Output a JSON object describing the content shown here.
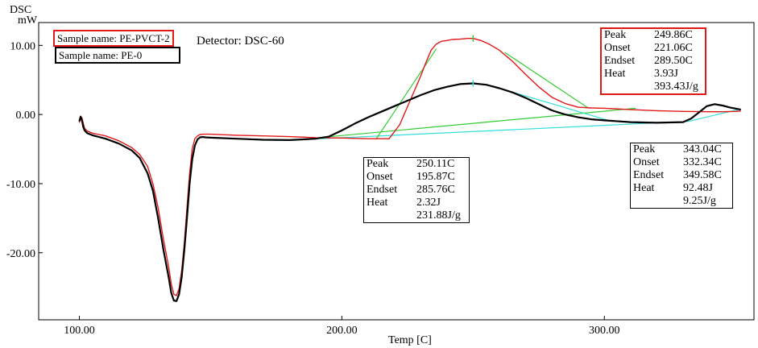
{
  "detector": "Detector: DSC-60",
  "samples": [
    {
      "name": "Sample name: PE-PVCT-2",
      "color": "#e01818"
    },
    {
      "name": "Sample name: PE-0",
      "color": "#000000"
    }
  ],
  "boxes": [
    {
      "id": "red",
      "border": "#e01818",
      "rows": [
        [
          "Peak",
          "249.86C"
        ],
        [
          "Onset",
          "221.06C"
        ],
        [
          "Endset",
          "289.50C"
        ],
        [
          "Heat",
          "3.93J"
        ],
        [
          "",
          "393.43J/g"
        ]
      ]
    },
    {
      "id": "mid",
      "border": "#000000",
      "rows": [
        [
          "Peak",
          "250.11C"
        ],
        [
          "Onset",
          "195.87C"
        ],
        [
          "Endset",
          "285.76C"
        ],
        [
          "Heat",
          "2.32J"
        ],
        [
          "",
          "231.88J/g"
        ]
      ]
    },
    {
      "id": "right",
      "border": "#000000",
      "rows": [
        [
          "Peak",
          "343.04C"
        ],
        [
          "Onset",
          "332.34C"
        ],
        [
          "Endset",
          "349.58C"
        ],
        [
          "Heat",
          "92.48J"
        ],
        [
          "",
          "9.25J/g"
        ]
      ]
    }
  ],
  "chart_data": {
    "type": "line",
    "title": "",
    "ylabel_top": "DSC",
    "ylabel_unit": "mW",
    "xlabel": "Temp [C]",
    "xlim": [
      84.5,
      357
    ],
    "ylim": [
      -29.7,
      13.3
    ],
    "xticks": [
      100,
      200,
      300
    ],
    "xtick_labels": [
      "100.00",
      "200.00",
      "300.00"
    ],
    "yticks": [
      10,
      0,
      -10,
      -20
    ],
    "ytick_labels": [
      "10.00",
      "0.00",
      "-10.00",
      "-20.00"
    ],
    "series": [
      {
        "name": "PE-PVCT-2",
        "color": "#e01818",
        "x": [
          100,
          100.5,
          101,
          101.5,
          102,
          103,
          105,
          110,
          115,
          120,
          123,
          126,
          128,
          130,
          132,
          134,
          135,
          136,
          137,
          138,
          139,
          140,
          141,
          142,
          143,
          144,
          145,
          146,
          147,
          148,
          150,
          160,
          170,
          180,
          190,
          200,
          210,
          218,
          222,
          226,
          230,
          232,
          234,
          236,
          238,
          240,
          242,
          245,
          248,
          250,
          253,
          256,
          260,
          265,
          270,
          275,
          280,
          285,
          290,
          295,
          300,
          310,
          320,
          330,
          340,
          345,
          350,
          352
        ],
        "y": [
          -1.2,
          -0.4,
          -0.5,
          -1.3,
          -2.0,
          -2.4,
          -2.7,
          -3.1,
          -3.8,
          -4.8,
          -5.8,
          -7.5,
          -10,
          -13.5,
          -18,
          -22,
          -24.5,
          -26.0,
          -26.2,
          -25.2,
          -22.5,
          -18.5,
          -13.5,
          -8.5,
          -5.0,
          -3.5,
          -3.1,
          -2.9,
          -2.85,
          -2.85,
          -2.85,
          -3.0,
          -3.1,
          -3.2,
          -3.35,
          -3.4,
          -3.5,
          -3.5,
          -1.5,
          2,
          5.5,
          7.5,
          9.3,
          10.2,
          10.6,
          10.7,
          10.85,
          10.9,
          11.0,
          11.0,
          10.7,
          10.2,
          9.3,
          7.7,
          5.8,
          4.0,
          2.5,
          1.6,
          1.05,
          0.95,
          0.9,
          0.7,
          0.55,
          0.45,
          0.4,
          0.4,
          0.45,
          0.5
        ]
      },
      {
        "name": "PE-0",
        "color": "#000000",
        "x": [
          100,
          100.5,
          101,
          101.5,
          102,
          103,
          105,
          110,
          115,
          120,
          123,
          126,
          128,
          130,
          132,
          134,
          135,
          136,
          137,
          138,
          139,
          140,
          141,
          142,
          143,
          144,
          145,
          146,
          147,
          148,
          150,
          160,
          170,
          180,
          190,
          195,
          200,
          205,
          210,
          215,
          220,
          225,
          230,
          235,
          240,
          245,
          250,
          255,
          260,
          265,
          270,
          275,
          280,
          285,
          290,
          295,
          300,
          310,
          320,
          330,
          333,
          336,
          339,
          342,
          345,
          348,
          352
        ],
        "y": [
          -1.0,
          -0.3,
          -0.9,
          -1.8,
          -2.3,
          -2.7,
          -3.0,
          -3.5,
          -4.2,
          -5.2,
          -6.3,
          -8.5,
          -11,
          -15,
          -19.5,
          -23.5,
          -25.8,
          -26.9,
          -27.0,
          -26,
          -23.5,
          -19.5,
          -15,
          -10,
          -6.5,
          -4.5,
          -3.6,
          -3.3,
          -3.25,
          -3.3,
          -3.35,
          -3.5,
          -3.65,
          -3.7,
          -3.5,
          -3.2,
          -2.3,
          -1.3,
          -0.4,
          0.4,
          1.2,
          2.0,
          2.8,
          3.5,
          4.0,
          4.4,
          4.5,
          4.3,
          3.8,
          3.2,
          2.4,
          1.5,
          0.6,
          0.0,
          -0.4,
          -0.7,
          -0.85,
          -1.1,
          -1.2,
          -1.1,
          -0.6,
          0.3,
          1.2,
          1.5,
          1.3,
          1.0,
          0.7
        ]
      }
    ],
    "baselines": [
      {
        "name": "PE-PVCT-2 baseline",
        "color": "#33cc33",
        "x": [
          190,
          312
        ],
        "y": [
          -3.4,
          0.9
        ]
      },
      {
        "name": "PE-0 baseline",
        "color": "#33dddd",
        "x": [
          192,
          332
        ],
        "y": [
          -3.5,
          -1.0
        ]
      },
      {
        "name": "PE-0 end baseline",
        "color": "#33dddd",
        "x": [
          332,
          352
        ],
        "y": [
          -1.0,
          0.8
        ]
      },
      {
        "name": "PE-PVCT-2 onset tangent",
        "color": "#33cc33",
        "x": [
          213,
          236
        ],
        "y": [
          -3.6,
          9.5
        ]
      },
      {
        "name": "PE-PVCT-2 endset tangent",
        "color": "#33cc33",
        "x": [
          262,
          294
        ],
        "y": [
          9.0,
          0.9
        ]
      },
      {
        "name": "PE-0 endset tangent",
        "color": "#33dddd",
        "x": [
          260,
          302
        ],
        "y": [
          3.8,
          -0.9
        ]
      }
    ],
    "peak_markers": [
      {
        "x": 250,
        "y": 4.5,
        "color": "#33dddd"
      },
      {
        "x": 250,
        "y": 11.0,
        "color": "#33cc33"
      }
    ]
  }
}
